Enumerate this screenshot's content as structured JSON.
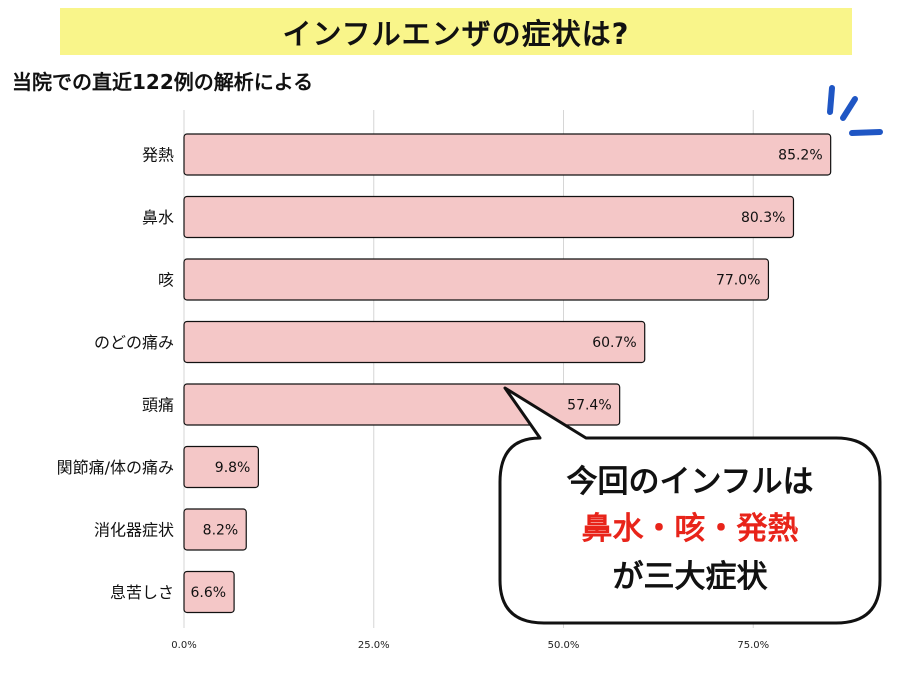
{
  "title": "インフルエンザの症状は?",
  "subtitle": "当院での直近122例の解析による",
  "chart_data": {
    "type": "bar",
    "orientation": "horizontal",
    "categories": [
      "発熱",
      "鼻水",
      "咳",
      "のどの痛み",
      "頭痛",
      "関節痛/体の痛み",
      "消化器症状",
      "息苦しさ"
    ],
    "values": [
      85.2,
      80.3,
      77.0,
      60.7,
      57.4,
      9.8,
      8.2,
      6.6
    ],
    "value_labels": [
      "85.2%",
      "80.3%",
      "77.0%",
      "60.7%",
      "57.4%",
      "9.8%",
      "8.2%",
      "6.6%"
    ],
    "xlim": [
      0,
      100
    ],
    "xticks": [
      0,
      25,
      50,
      75
    ],
    "xtick_labels": [
      "0.0%",
      "25.0%",
      "50.0%",
      "75.0%"
    ],
    "grid": true,
    "bar_color": "#f4c7c7",
    "bar_edge_color": "#111111"
  },
  "callout": {
    "line1": "今回のインフルは",
    "line2": "鼻水・咳・発熱",
    "line3": "が三大症状",
    "highlight_color": "#e8241a"
  },
  "accent_color": "#1f56c4"
}
